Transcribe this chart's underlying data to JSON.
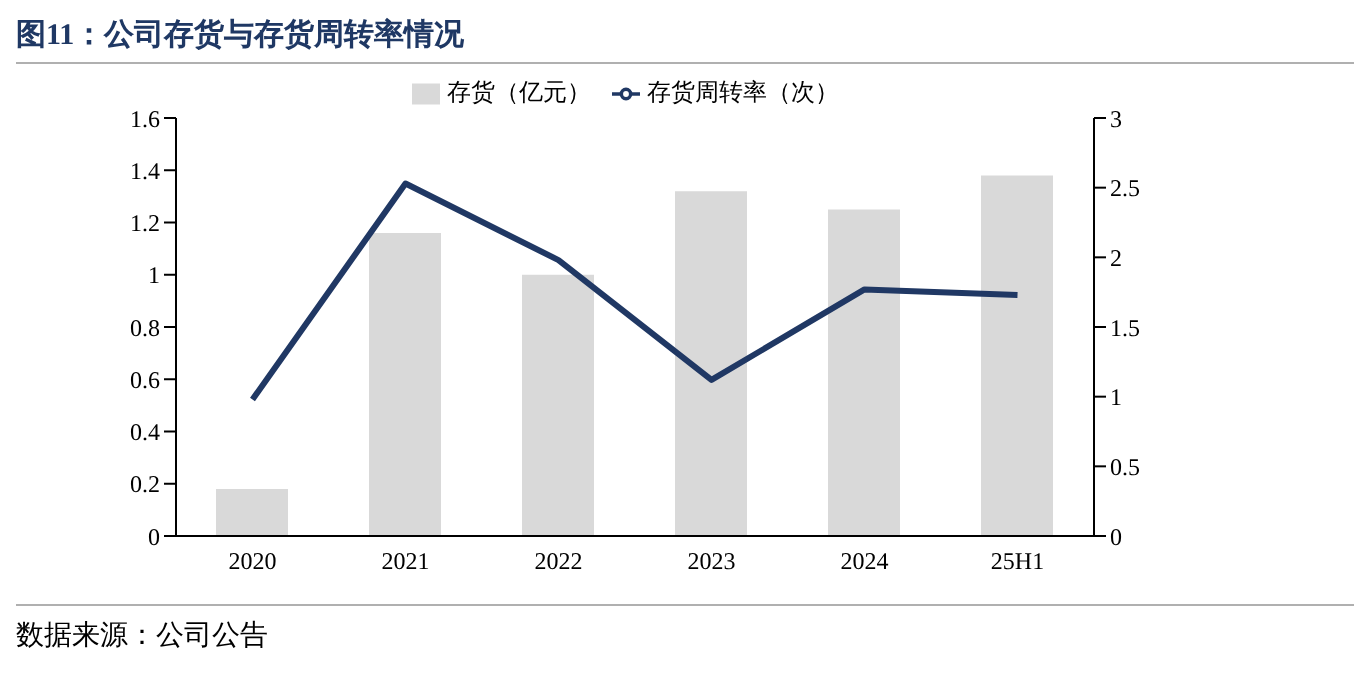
{
  "chart_data": {
    "type": "bar",
    "title": "图11：公司存货与存货周转率情况",
    "categories": [
      "2020",
      "2021",
      "2022",
      "2023",
      "2024",
      "25H1"
    ],
    "series": [
      {
        "name": "存货（亿元）",
        "color": "#d9d9d9",
        "values": [
          0.18,
          1.16,
          1.0,
          1.32,
          1.25,
          1.38
        ]
      },
      {
        "name": "存货周转率（次）",
        "type": "line",
        "axis": "y2",
        "color": "#203864",
        "values": [
          0.98,
          2.53,
          1.98,
          1.12,
          1.77,
          1.73
        ]
      }
    ],
    "ylim": [
      0,
      1.6
    ],
    "yticks": [
      0,
      0.2,
      0.4,
      0.6,
      0.8,
      1,
      1.2,
      1.4,
      1.6
    ],
    "y2lim": [
      0,
      3
    ],
    "y2ticks": [
      0,
      0.5,
      1,
      1.5,
      2,
      2.5,
      3
    ],
    "legend": "top",
    "marker": "none",
    "annotations": [
      "数据来源：公司公告"
    ]
  }
}
